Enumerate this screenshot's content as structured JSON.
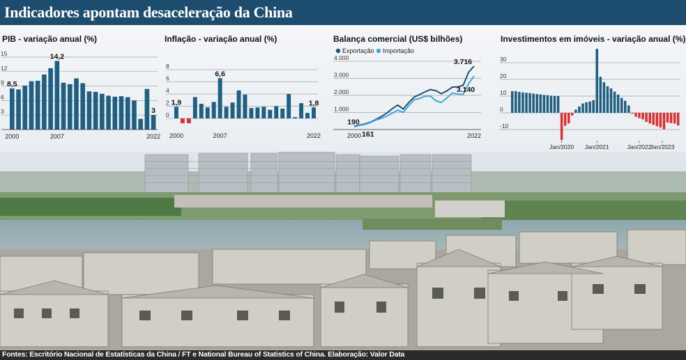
{
  "title": "Indicadores apontam desaceleração da China",
  "source": "Fontes: Escritório Nacional de Estatísticas da China / FT e National Bureau of Statistics of China. Elaboração: Valor Data",
  "colors": {
    "bar": "#1f5f82",
    "negative": "#e0302f",
    "export": "#1e5475",
    "import": "#3ea6dc"
  },
  "chart_data": [
    {
      "type": "bar",
      "title": "PIB - variação anual (%)",
      "x": [
        2000,
        2001,
        2002,
        2003,
        2004,
        2005,
        2006,
        2007,
        2008,
        2009,
        2010,
        2011,
        2012,
        2013,
        2014,
        2015,
        2016,
        2017,
        2018,
        2019,
        2020,
        2021,
        2022
      ],
      "values": [
        8.5,
        8.3,
        9.1,
        10.0,
        10.1,
        11.4,
        12.7,
        14.2,
        9.7,
        9.4,
        10.6,
        9.6,
        7.9,
        7.8,
        7.4,
        7.0,
        6.8,
        6.9,
        6.7,
        6.0,
        2.2,
        8.4,
        3.0
      ],
      "yticks": [
        3,
        6,
        9,
        12,
        15
      ],
      "ylim": [
        0,
        15
      ],
      "xticks": [
        "2000",
        "2007",
        "2022"
      ],
      "labels": [
        {
          "text": "8,5",
          "index": 0
        },
        {
          "text": "14,2",
          "index": 7
        },
        {
          "text": "3",
          "index": 22
        }
      ]
    },
    {
      "type": "bar",
      "title": "Inflação - variação anual (%)",
      "x": [
        2000,
        2001,
        2002,
        2003,
        2004,
        2005,
        2006,
        2007,
        2008,
        2009,
        2010,
        2011,
        2012,
        2013,
        2014,
        2015,
        2016,
        2017,
        2018,
        2019,
        2020,
        2021,
        2022
      ],
      "values": [
        1.9,
        -0.8,
        -0.8,
        3.5,
        2.4,
        1.8,
        2.7,
        6.6,
        1.9,
        2.6,
        4.6,
        3.9,
        1.7,
        1.8,
        1.9,
        1.4,
        2.0,
        1.6,
        4.0,
        0.2,
        2.5,
        0.9,
        1.8
      ],
      "yticks": [
        0,
        2,
        4,
        6,
        8
      ],
      "ylim": [
        -1,
        8
      ],
      "xticks": [
        "2000",
        "2007",
        "2022"
      ],
      "labels": [
        {
          "text": "1,9",
          "index": 0
        },
        {
          "text": "6,6",
          "index": 7
        },
        {
          "text": "1,8",
          "index": 22
        }
      ]
    },
    {
      "type": "line",
      "title": "Balança comercial (US$ bilhões)",
      "x": [
        2000,
        2001,
        2002,
        2003,
        2004,
        2005,
        2006,
        2007,
        2008,
        2009,
        2010,
        2011,
        2012,
        2013,
        2014,
        2015,
        2016,
        2017,
        2018,
        2019,
        2020,
        2021,
        2022
      ],
      "series": [
        {
          "name": "Exportação",
          "values": [
            190,
            266,
            326,
            438,
            593,
            762,
            969,
            1220,
            1431,
            1202,
            1578,
            1898,
            2049,
            2209,
            2342,
            2273,
            2098,
            2263,
            2487,
            2499,
            2590,
            3363,
            3716
          ]
        },
        {
          "name": "Importação",
          "values": [
            161,
            244,
            295,
            413,
            561,
            660,
            792,
            956,
            1133,
            1006,
            1396,
            1743,
            1818,
            1950,
            1959,
            1680,
            1588,
            1843,
            2135,
            2077,
            2066,
            2688,
            3140
          ]
        }
      ],
      "yticks": [
        "1.000",
        "2.000",
        "3.000",
        "4.000"
      ],
      "ylim": [
        0,
        4000
      ],
      "xticks": [
        "2000",
        "2022"
      ],
      "labels": [
        "190",
        "161",
        "3.716",
        "3.140"
      ]
    },
    {
      "type": "bar",
      "title": "Investimentos em imóveis - variação anual (%)",
      "values": [
        13.0,
        13.0,
        12.5,
        12.2,
        12.0,
        11.8,
        11.5,
        11.2,
        11.0,
        10.7,
        10.5,
        10.2,
        10.1,
        10.0,
        -16.3,
        -7.7,
        -6.3,
        -1.6,
        1.9,
        3.8,
        5.6,
        6.3,
        6.8,
        7.6,
        38.3,
        21.6,
        18.3,
        15.9,
        14.6,
        12.7,
        10.9,
        8.9,
        7.2,
        4.4,
        -0.5,
        -2.3,
        -3.2,
        -3.9,
        -5.4,
        -6.4,
        -7.2,
        -8.0,
        -8.8,
        -9.8,
        -5.8,
        -6.2,
        -6.4,
        -7.6
      ],
      "yticks": [
        "-10",
        "0",
        "10",
        "20",
        "30"
      ],
      "ylim": [
        -15,
        40
      ],
      "xticks": [
        {
          "label": "Jan/2020",
          "index": 14
        },
        {
          "label": "Jan/2021",
          "index": 24
        },
        {
          "label": "Jan/2022",
          "index": 36
        },
        {
          "label": "Jan/2023",
          "index": 48
        }
      ]
    }
  ]
}
